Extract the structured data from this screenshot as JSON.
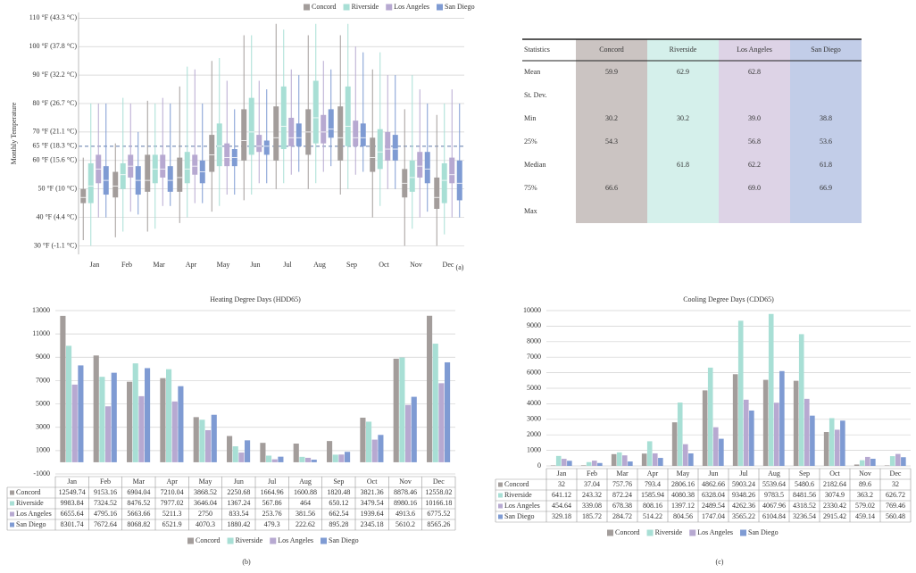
{
  "chart_data": [
    {
      "type": "box",
      "label": "(a)",
      "y_label": "Monthly Temperature",
      "categories": [
        "Jan",
        "Feb",
        "Mar",
        "Apr",
        "May",
        "Jun",
        "Jul",
        "Aug",
        "Sep",
        "Oct",
        "Nov",
        "Dec"
      ],
      "ylim": [
        27,
        112
      ],
      "yticks": [
        {
          "value": 30,
          "label": "30 °F (-1.1 °C)"
        },
        {
          "value": 40,
          "label": "40 °F (4.4 °C)"
        },
        {
          "value": 50,
          "label": "50 °F (10 °C)"
        },
        {
          "value": 60,
          "label": "60 °F (15.6 °C)"
        },
        {
          "value": 65,
          "label": "65 °F (18.3 °C)",
          "style": "dashed"
        },
        {
          "value": 70,
          "label": "70 °F (21.1 °C)"
        },
        {
          "value": 80,
          "label": "80 °F (26.7 °C)"
        },
        {
          "value": 90,
          "label": "90 °F (32.2 °C)"
        },
        {
          "value": 100,
          "label": "100 °F (37.8 °C)"
        },
        {
          "value": 110,
          "label": "110 °F (43.3 °C)"
        }
      ],
      "grid": true,
      "legend": "top-right",
      "series": [
        {
          "name": "Concord",
          "color": "#a39d9b",
          "values": [
            [
              32,
              45,
              47,
              50,
              61
            ],
            [
              33,
              47,
              51,
              56,
              66
            ],
            [
              35,
              49,
              53,
              62,
              81
            ],
            [
              38,
              49,
              54,
              61,
              86
            ],
            [
              42,
              56,
              62,
              69,
              95
            ],
            [
              46,
              60,
              67,
              78,
              104
            ],
            [
              50,
              60,
              68,
              79,
              108
            ],
            [
              50,
              62,
              70,
              78,
              104
            ],
            [
              48,
              60,
              68,
              79,
              104
            ],
            [
              40,
              56,
              61,
              68,
              92
            ],
            [
              30,
              47,
              52,
              57,
              78
            ],
            [
              30,
              43,
              47,
              54,
              76
            ]
          ]
        },
        {
          "name": "Riverside",
          "color": "#a8dfd5",
          "values": [
            [
              30,
              45,
              51,
              59,
              80
            ],
            [
              35,
              50,
              55,
              59,
              82
            ],
            [
              36,
              52,
              57,
              62,
              80
            ],
            [
              40,
              52,
              57,
              63,
              93
            ],
            [
              44,
              58,
              65,
              73,
              96
            ],
            [
              48,
              62,
              70,
              82,
              104
            ],
            [
              52,
              64,
              72,
              86,
              106
            ],
            [
              52,
              66,
              75,
              88,
              108
            ],
            [
              50,
              65,
              72,
              86,
              108
            ],
            [
              44,
              57,
              63,
              71,
              98
            ],
            [
              36,
              49,
              54,
              60,
              90
            ],
            [
              34,
              45,
              53,
              59,
              80
            ]
          ]
        },
        {
          "name": "Los Angeles",
          "color": "#b7a9d1",
          "values": [
            [
              40,
              52,
              57,
              62,
              80
            ],
            [
              42,
              54,
              58,
              62,
              80
            ],
            [
              44,
              54,
              57,
              62,
              82
            ],
            [
              45,
              55,
              58,
              62,
              92
            ],
            [
              48,
              58,
              61,
              66,
              88
            ],
            [
              52,
              63,
              65,
              69,
              88
            ],
            [
              55,
              65,
              68,
              75,
              92
            ],
            [
              56,
              66,
              70,
              76,
              95
            ],
            [
              55,
              65,
              68,
              74,
              100
            ],
            [
              50,
              60,
              64,
              70,
              90
            ],
            [
              40,
              54,
              58,
              63,
              85
            ],
            [
              40,
              52,
              55,
              61,
              85
            ]
          ]
        },
        {
          "name": "San Diego",
          "color": "#7f9bd3",
          "values": [
            [
              40,
              48,
              53,
              58,
              80
            ],
            [
              41,
              48,
              53,
              58,
              70
            ],
            [
              44,
              49,
              53,
              58,
              80
            ],
            [
              45,
              52,
              56,
              60,
              80
            ],
            [
              48,
              58,
              61,
              64,
              78
            ],
            [
              52,
              62,
              65,
              67,
              85
            ],
            [
              56,
              65,
              68,
              73,
              90
            ],
            [
              58,
              68,
              71,
              78,
              92
            ],
            [
              56,
              65,
              68,
              73,
              98
            ],
            [
              50,
              60,
              64,
              69,
              90
            ],
            [
              42,
              52,
              57,
              63,
              80
            ],
            [
              40,
              46,
              52,
              60,
              80
            ]
          ]
        }
      ]
    },
    {
      "type": "bar",
      "title": "Heating Degree Days (HDD65)",
      "label": "(b)",
      "categories": [
        "Jan",
        "Feb",
        "Mar",
        "Apr",
        "May",
        "Jun",
        "Jul",
        "Aug",
        "Sep",
        "Oct",
        "Nov",
        "Dec"
      ],
      "ylim": [
        -1000,
        13000
      ],
      "yticks": [
        -1000,
        1000,
        3000,
        5000,
        7000,
        9000,
        11000,
        13000
      ],
      "grid": true,
      "legend": "bottom",
      "data_table": true,
      "series": [
        {
          "name": "Concord",
          "color": "#a39d9b",
          "values": [
            12549.74,
            9153.16,
            6904.04,
            7210.04,
            3868.52,
            2250.68,
            1664.96,
            1600.88,
            1820.48,
            3821.36,
            8878.46,
            12558.02
          ]
        },
        {
          "name": "Riverside",
          "color": "#a8dfd5",
          "values": [
            9983.84,
            7324.52,
            8476.52,
            7977.02,
            3646.04,
            1367.24,
            567.86,
            464,
            650.12,
            3479.54,
            8980.16,
            10166.18
          ]
        },
        {
          "name": "Los Angeles",
          "color": "#b7a9d1",
          "values": [
            6655.64,
            4795.16,
            5663.66,
            5211.3,
            2750,
            833.54,
            253.76,
            381.56,
            662.54,
            1939.64,
            4913.6,
            6775.52
          ]
        },
        {
          "name": "San Diego",
          "color": "#7f9bd3",
          "values": [
            8301.74,
            7672.64,
            8068.82,
            6521.9,
            4070.3,
            1880.42,
            479.3,
            222.62,
            895.28,
            2345.18,
            5610.2,
            8565.26
          ]
        }
      ]
    },
    {
      "type": "bar",
      "title": "Cooling Degree Days (CDD65)",
      "label": "(c)",
      "categories": [
        "Jan",
        "Feb",
        "Mar",
        "Apr",
        "May",
        "Jun",
        "Jul",
        "Aug",
        "Sep",
        "Oct",
        "Nov",
        "Dec"
      ],
      "ylim": [
        0,
        10000
      ],
      "yticks": [
        0,
        1000,
        2000,
        3000,
        4000,
        5000,
        6000,
        7000,
        8000,
        9000,
        10000
      ],
      "grid": true,
      "legend": "bottom",
      "data_table": true,
      "series": [
        {
          "name": "Concord",
          "color": "#a39d9b",
          "values": [
            32,
            37.04,
            757.76,
            793.4,
            2806.16,
            4862.66,
            5903.24,
            5539.64,
            5480.6,
            2182.64,
            89.6,
            32
          ]
        },
        {
          "name": "Riverside",
          "color": "#a8dfd5",
          "values": [
            641.12,
            243.32,
            872.24,
            1585.94,
            4080.38,
            6328.04,
            9348.26,
            9783.5,
            8481.56,
            3074.9,
            363.2,
            626.72
          ]
        },
        {
          "name": "Los Angeles",
          "color": "#b7a9d1",
          "values": [
            454.64,
            339.08,
            678.38,
            808.16,
            1397.12,
            2489.54,
            4262.36,
            4067.96,
            4318.52,
            2330.42,
            579.02,
            769.46
          ]
        },
        {
          "name": "San Diego",
          "color": "#7f9bd3",
          "values": [
            329.18,
            185.72,
            284.72,
            514.22,
            804.56,
            1747.04,
            3565.22,
            6104.84,
            3236.54,
            2915.42,
            459.14,
            560.48
          ]
        }
      ]
    }
  ],
  "stats_table": {
    "header": [
      "Statistics",
      "Concord",
      "Riverside",
      "Los Angeles",
      "San Diego"
    ],
    "column_colors": [
      null,
      "#cbc4c2",
      "#d5f0eb",
      "#ddd3e6",
      "#c2cde8"
    ],
    "rows": [
      [
        "Mean",
        "59.9",
        "62.9",
        "62.8",
        null
      ],
      [
        "St. Dev.",
        null,
        null,
        null,
        null
      ],
      [
        "Min",
        "30.2",
        "30.2",
        "39.0",
        "38.8"
      ],
      [
        "25%",
        "54.3",
        null,
        "56.8",
        "53.6"
      ],
      [
        "Median",
        null,
        "61.8",
        "62.2",
        "61.8"
      ],
      [
        "75%",
        "66.6",
        null,
        "69.0",
        "66.9"
      ],
      [
        "Max",
        null,
        null,
        null,
        null
      ]
    ]
  }
}
